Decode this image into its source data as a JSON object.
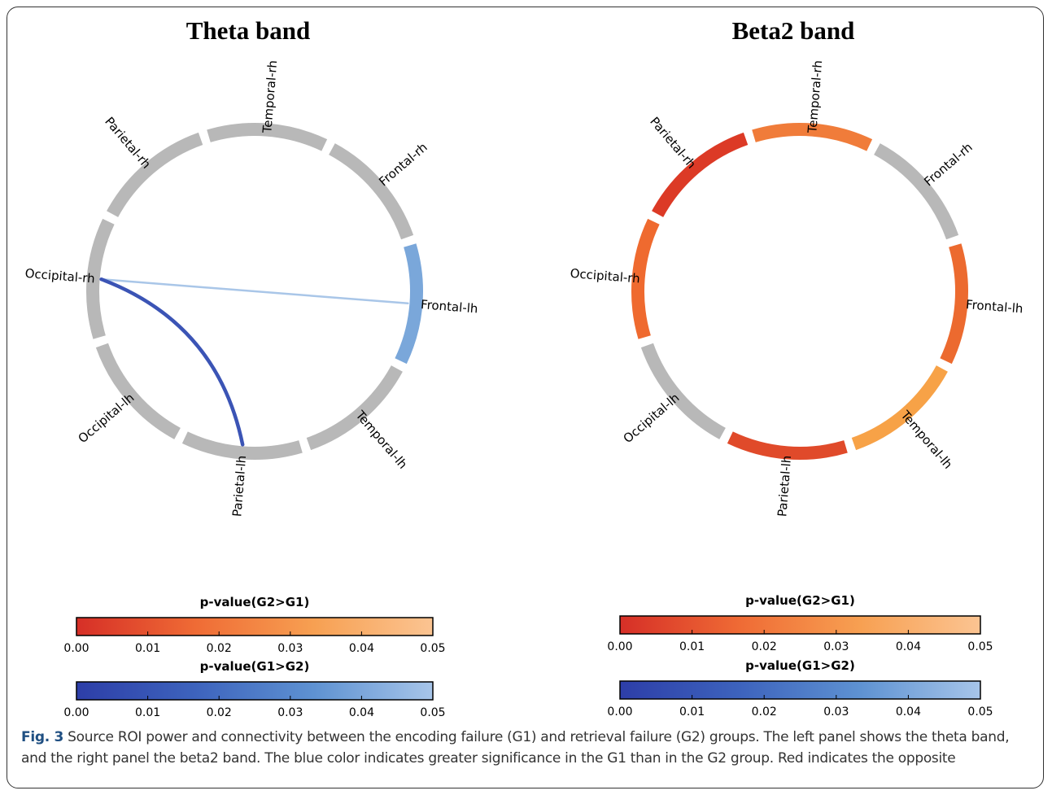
{
  "figure_label": "Fig. 3",
  "caption_text": "Source ROI power and connectivity between the encoding failure (G1) and retrieval failure (G2) groups. The left panel shows the theta band, and the right panel the beta2 band. The blue color indicates greater significance in the G1 than in the G2 group. Red indicates the opposite",
  "panels": [
    {
      "title": "Theta band",
      "nodes": [
        {
          "label": "Frontal-rh",
          "color": "#b8b8b8"
        },
        {
          "label": "Temporal-rh",
          "color": "#b8b8b8"
        },
        {
          "label": "Parietal-rh",
          "color": "#b8b8b8"
        },
        {
          "label": "Occipital-rh",
          "color": "#b8b8b8"
        },
        {
          "label": "Occipital-lh",
          "color": "#b8b8b8"
        },
        {
          "label": "Parietal-lh",
          "color": "#b8b8b8"
        },
        {
          "label": "Temporal-lh",
          "color": "#b8b8b8"
        },
        {
          "label": "Frontal-lh",
          "color": "#7aa7da"
        }
      ],
      "connections": [
        {
          "from": "Frontal-lh",
          "to": "Occipital-rh",
          "color": "#a9c6e8"
        },
        {
          "from": "Parietal-lh",
          "to": "Occipital-rh",
          "color": "#3b54b5"
        }
      ]
    },
    {
      "title": "Beta2 band",
      "nodes": [
        {
          "label": "Frontal-rh",
          "color": "#b8b8b8"
        },
        {
          "label": "Temporal-rh",
          "color": "#f07c3a"
        },
        {
          "label": "Parietal-rh",
          "color": "#dc3a26"
        },
        {
          "label": "Occipital-rh",
          "color": "#ef6a2f"
        },
        {
          "label": "Occipital-lh",
          "color": "#b8b8b8"
        },
        {
          "label": "Parietal-lh",
          "color": "#e04a2a"
        },
        {
          "label": "Temporal-lh",
          "color": "#f7a247"
        },
        {
          "label": "Frontal-lh",
          "color": "#ec6a2f"
        }
      ],
      "connections": []
    }
  ],
  "colorbars": [
    {
      "title": "p-value(G2>G1)",
      "gradient": [
        "#d62f27",
        "#ef6b35",
        "#f7a052",
        "#fbc492"
      ],
      "ticks": [
        "0.00",
        "0.01",
        "0.02",
        "0.03",
        "0.04",
        "0.05"
      ]
    },
    {
      "title": "p-value(G1>G2)",
      "gradient": [
        "#2d3ea8",
        "#3d63bd",
        "#5e92d2",
        "#a7c5e9"
      ],
      "ticks": [
        "0.00",
        "0.01",
        "0.02",
        "0.03",
        "0.04",
        "0.05"
      ]
    }
  ]
}
